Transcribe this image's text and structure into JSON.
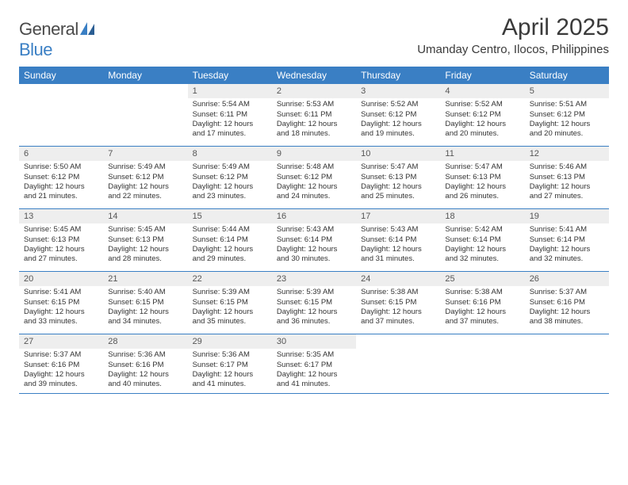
{
  "brand": {
    "general": "General",
    "blue": "Blue"
  },
  "title": "April 2025",
  "location": "Umanday Centro, Ilocos, Philippines",
  "colors": {
    "header_bg": "#3a7fc4",
    "header_text": "#ffffff",
    "daynum_bg": "#eeeeee",
    "border": "#3a7fc4",
    "text": "#333333",
    "title_text": "#3a3a3a"
  },
  "dayNames": [
    "Sunday",
    "Monday",
    "Tuesday",
    "Wednesday",
    "Thursday",
    "Friday",
    "Saturday"
  ],
  "weeks": [
    [
      null,
      null,
      {
        "n": "1",
        "sr": "5:54 AM",
        "ss": "6:11 PM",
        "dl": "12 hours and 17 minutes."
      },
      {
        "n": "2",
        "sr": "5:53 AM",
        "ss": "6:11 PM",
        "dl": "12 hours and 18 minutes."
      },
      {
        "n": "3",
        "sr": "5:52 AM",
        "ss": "6:12 PM",
        "dl": "12 hours and 19 minutes."
      },
      {
        "n": "4",
        "sr": "5:52 AM",
        "ss": "6:12 PM",
        "dl": "12 hours and 20 minutes."
      },
      {
        "n": "5",
        "sr": "5:51 AM",
        "ss": "6:12 PM",
        "dl": "12 hours and 20 minutes."
      }
    ],
    [
      {
        "n": "6",
        "sr": "5:50 AM",
        "ss": "6:12 PM",
        "dl": "12 hours and 21 minutes."
      },
      {
        "n": "7",
        "sr": "5:49 AM",
        "ss": "6:12 PM",
        "dl": "12 hours and 22 minutes."
      },
      {
        "n": "8",
        "sr": "5:49 AM",
        "ss": "6:12 PM",
        "dl": "12 hours and 23 minutes."
      },
      {
        "n": "9",
        "sr": "5:48 AM",
        "ss": "6:12 PM",
        "dl": "12 hours and 24 minutes."
      },
      {
        "n": "10",
        "sr": "5:47 AM",
        "ss": "6:13 PM",
        "dl": "12 hours and 25 minutes."
      },
      {
        "n": "11",
        "sr": "5:47 AM",
        "ss": "6:13 PM",
        "dl": "12 hours and 26 minutes."
      },
      {
        "n": "12",
        "sr": "5:46 AM",
        "ss": "6:13 PM",
        "dl": "12 hours and 27 minutes."
      }
    ],
    [
      {
        "n": "13",
        "sr": "5:45 AM",
        "ss": "6:13 PM",
        "dl": "12 hours and 27 minutes."
      },
      {
        "n": "14",
        "sr": "5:45 AM",
        "ss": "6:13 PM",
        "dl": "12 hours and 28 minutes."
      },
      {
        "n": "15",
        "sr": "5:44 AM",
        "ss": "6:14 PM",
        "dl": "12 hours and 29 minutes."
      },
      {
        "n": "16",
        "sr": "5:43 AM",
        "ss": "6:14 PM",
        "dl": "12 hours and 30 minutes."
      },
      {
        "n": "17",
        "sr": "5:43 AM",
        "ss": "6:14 PM",
        "dl": "12 hours and 31 minutes."
      },
      {
        "n": "18",
        "sr": "5:42 AM",
        "ss": "6:14 PM",
        "dl": "12 hours and 32 minutes."
      },
      {
        "n": "19",
        "sr": "5:41 AM",
        "ss": "6:14 PM",
        "dl": "12 hours and 32 minutes."
      }
    ],
    [
      {
        "n": "20",
        "sr": "5:41 AM",
        "ss": "6:15 PM",
        "dl": "12 hours and 33 minutes."
      },
      {
        "n": "21",
        "sr": "5:40 AM",
        "ss": "6:15 PM",
        "dl": "12 hours and 34 minutes."
      },
      {
        "n": "22",
        "sr": "5:39 AM",
        "ss": "6:15 PM",
        "dl": "12 hours and 35 minutes."
      },
      {
        "n": "23",
        "sr": "5:39 AM",
        "ss": "6:15 PM",
        "dl": "12 hours and 36 minutes."
      },
      {
        "n": "24",
        "sr": "5:38 AM",
        "ss": "6:15 PM",
        "dl": "12 hours and 37 minutes."
      },
      {
        "n": "25",
        "sr": "5:38 AM",
        "ss": "6:16 PM",
        "dl": "12 hours and 37 minutes."
      },
      {
        "n": "26",
        "sr": "5:37 AM",
        "ss": "6:16 PM",
        "dl": "12 hours and 38 minutes."
      }
    ],
    [
      {
        "n": "27",
        "sr": "5:37 AM",
        "ss": "6:16 PM",
        "dl": "12 hours and 39 minutes."
      },
      {
        "n": "28",
        "sr": "5:36 AM",
        "ss": "6:16 PM",
        "dl": "12 hours and 40 minutes."
      },
      {
        "n": "29",
        "sr": "5:36 AM",
        "ss": "6:17 PM",
        "dl": "12 hours and 41 minutes."
      },
      {
        "n": "30",
        "sr": "5:35 AM",
        "ss": "6:17 PM",
        "dl": "12 hours and 41 minutes."
      },
      null,
      null,
      null
    ]
  ],
  "labels": {
    "sunrise": "Sunrise:",
    "sunset": "Sunset:",
    "daylight": "Daylight:"
  }
}
